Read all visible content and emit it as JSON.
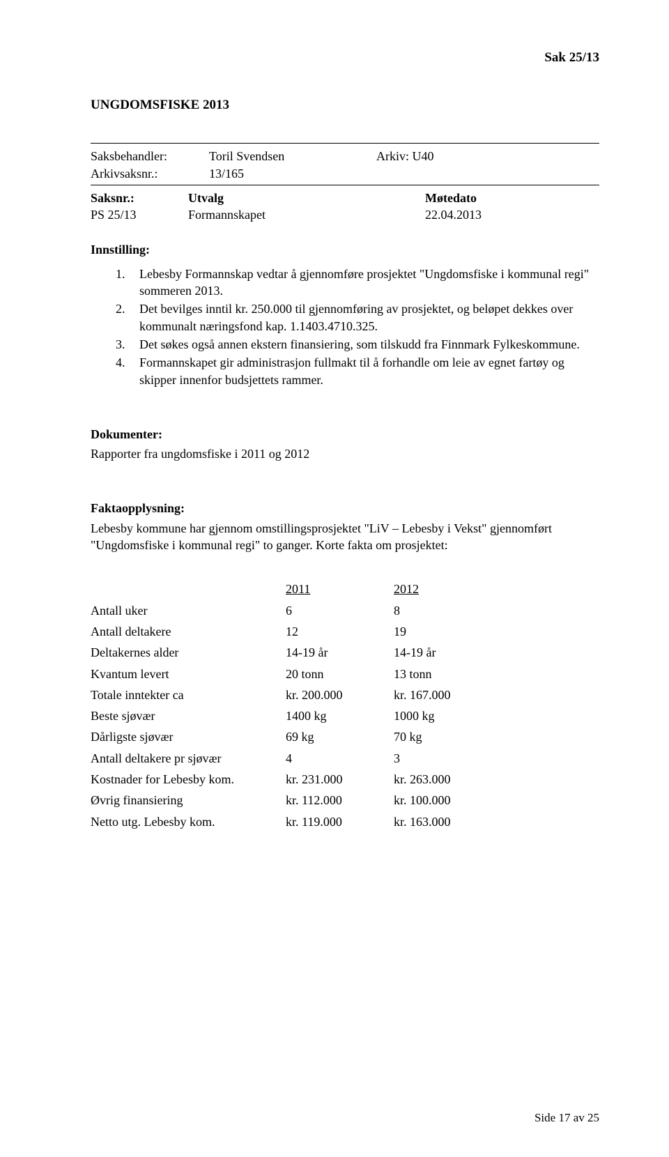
{
  "header": {
    "sak": "Sak  25/13"
  },
  "title": "UNGDOMSFISKE 2013",
  "meta": {
    "saksbehandler_label": "Saksbehandler:",
    "saksbehandler": "Toril Svendsen",
    "arkiv_label": "Arkiv: U40",
    "arkivsaksnr_label": "Arkivsaksnr.:",
    "arkivsaksnr": "13/165"
  },
  "utvalg": {
    "head_saksnr": "Saksnr.:",
    "head_utvalg": "Utvalg",
    "head_motedato": "Møtedato",
    "row_saksnr": "PS 25/13",
    "row_utvalg": "Formannskapet",
    "row_dato": "22.04.2013"
  },
  "innstilling_label": "Innstilling:",
  "innstilling_items": [
    "Lebesby Formannskap vedtar å gjennomføre prosjektet \"Ungdomsfiske i kommunal regi\" sommeren 2013.",
    "Det bevilges inntil kr. 250.000 til gjennomføring av prosjektet, og beløpet dekkes over kommunalt næringsfond kap. 1.1403.4710.325.",
    "Det søkes også annen ekstern finansiering, som tilskudd fra Finnmark Fylkeskommune.",
    "Formannskapet gir administrasjon fullmakt til å forhandle om leie av egnet fartøy og skipper innenfor budsjettets rammer."
  ],
  "dokumenter": {
    "heading": "Dokumenter:",
    "text": "Rapporter fra ungdomsfiske i 2011 og 2012"
  },
  "fakta": {
    "heading": "Faktaopplysning:",
    "text": "Lebesby kommune har gjennom omstillingsprosjektet \"LiV – Lebesby i Vekst\" gjennomført \"Ungdomsfiske i kommunal regi\" to ganger. Korte fakta om prosjektet:"
  },
  "table": {
    "head_2011": "2011",
    "head_2012": "2012",
    "rows": [
      {
        "label": "Antall uker",
        "y2011": "6",
        "y2012": "8"
      },
      {
        "label": "Antall deltakere",
        "y2011": "12",
        "y2012": "19"
      },
      {
        "label": "Deltakernes alder",
        "y2011": "14-19 år",
        "y2012": "14-19 år"
      },
      {
        "label": "Kvantum levert",
        "y2011": "20 tonn",
        "y2012": "13 tonn"
      },
      {
        "label": "Totale inntekter ca",
        "y2011": "kr. 200.000",
        "y2012": "kr. 167.000"
      },
      {
        "label": "Beste sjøvær",
        "y2011": "1400 kg",
        "y2012": "1000 kg"
      },
      {
        "label": "Dårligste sjøvær",
        "y2011": "69 kg",
        "y2012": "70 kg"
      },
      {
        "label": "Antall deltakere pr sjøvær",
        "y2011": "4",
        "y2012": "3"
      },
      {
        "label": "Kostnader for Lebesby kom.",
        "y2011": "kr. 231.000",
        "y2012": "kr. 263.000"
      },
      {
        "label": "Øvrig finansiering",
        "y2011": "kr. 112.000",
        "y2012": "kr. 100.000"
      },
      {
        "label": "Netto utg. Lebesby kom.",
        "y2011": "kr. 119.000",
        "y2012": "kr. 163.000"
      }
    ]
  },
  "footer": "Side 17 av 25"
}
